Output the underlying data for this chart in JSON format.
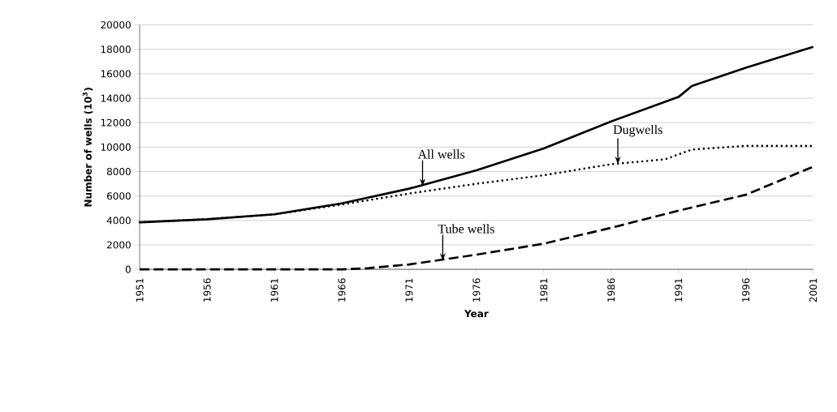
{
  "chart_data": {
    "type": "line",
    "xlabel": "Year",
    "ylabel": "Number of wells (10$^{3}$)",
    "xlim": [
      1951,
      2001
    ],
    "xticks": [
      1951,
      1956,
      1961,
      1966,
      1971,
      1976,
      1981,
      1986,
      1991,
      1996,
      2001
    ],
    "ylim": [
      0,
      20000
    ],
    "yticks": [
      0,
      2000,
      4000,
      6000,
      8000,
      10000,
      12000,
      14000,
      16000,
      18000,
      20000
    ],
    "grid": "y",
    "marker": "none",
    "series": [
      {
        "color": "#000000",
        "line_style": "solid",
        "x": [
          1951,
          1956,
          1961,
          1966,
          1971,
          1976,
          1981,
          1986,
          1991,
          1992,
          1996,
          2001
        ],
        "values": [
          3850,
          4100,
          4500,
          5400,
          6600,
          8100,
          9900,
          12100,
          14100,
          15000,
          16500,
          18200
        ]
      },
      {
        "color": "#000000",
        "line_style": "dotted",
        "x": [
          1951,
          1956,
          1961,
          1966,
          1971,
          1976,
          1981,
          1986,
          1990,
          1992,
          1996,
          2001
        ],
        "values": [
          3850,
          4100,
          4500,
          5300,
          6200,
          7000,
          7700,
          8600,
          9000,
          9800,
          10100,
          10100
        ]
      },
      {
        "color": "#000000",
        "line_style": "dashed",
        "x": [
          1951,
          1956,
          1961,
          1966,
          1968,
          1971,
          1976,
          1981,
          1986,
          1991,
          1996,
          2001
        ],
        "values": [
          0,
          0,
          0,
          0,
          100,
          400,
          1200,
          2100,
          3400,
          4800,
          6100,
          8400
        ]
      }
    ],
    "annotations": [
      {
        "text": "All wells",
        "x": 1972,
        "y": 6800
      },
      {
        "text": "Dugwells",
        "x": 1986.5,
        "y": 8600
      },
      {
        "text": "Tube wells",
        "x": 1973.5,
        "y": 700
      }
    ]
  }
}
